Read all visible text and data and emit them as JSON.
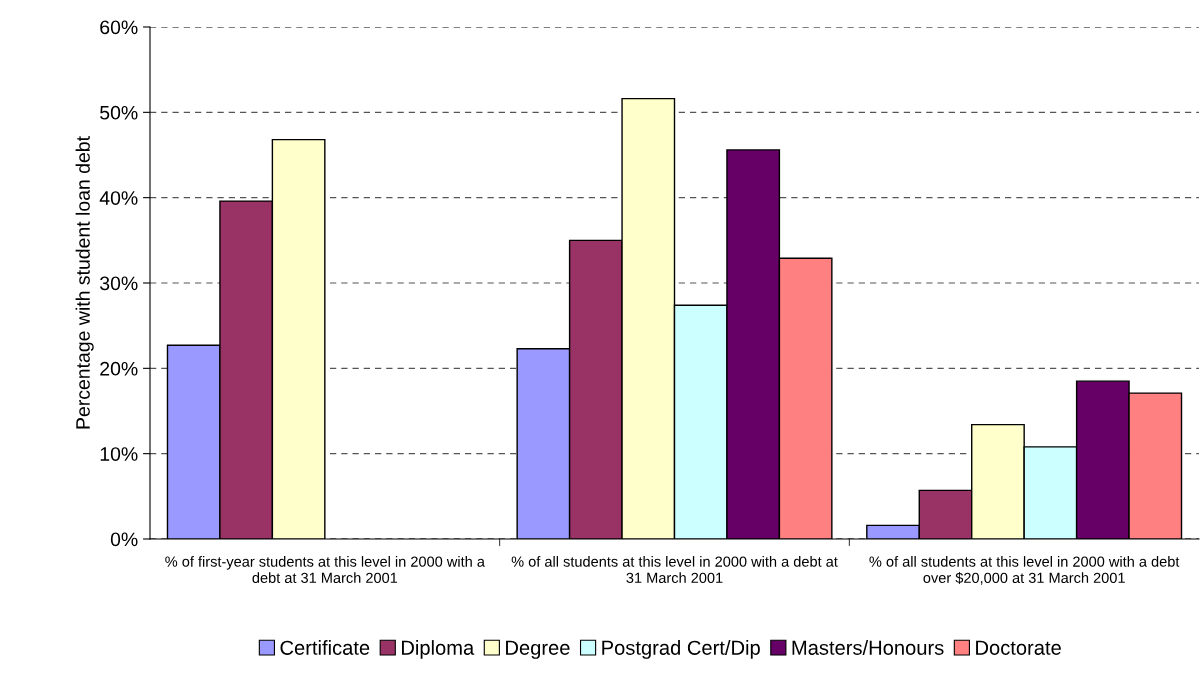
{
  "chart_data": {
    "type": "bar",
    "ylabel": "Percentage with student loan debt",
    "categories": [
      "% of first-year students at this level in 2000 with a debt at 31 March 2001",
      "% of all students at this level in 2000 with a debt at 31 March 2001",
      "% of all students at this level in 2000 with a debt over $20,000 at 31 March 2001"
    ],
    "series": [
      {
        "name": "Certificate",
        "color": "#9999ff",
        "values": [
          22.7,
          22.3,
          1.6
        ]
      },
      {
        "name": "Diploma",
        "color": "#993366",
        "values": [
          39.6,
          35.0,
          5.7
        ]
      },
      {
        "name": "Degree",
        "color": "#ffffcc",
        "values": [
          46.8,
          51.6,
          13.4
        ]
      },
      {
        "name": "Postgrad Cert/Dip",
        "color": "#ccffff",
        "values": [
          null,
          27.4,
          10.8
        ]
      },
      {
        "name": "Masters/Honours",
        "color": "#660066",
        "values": [
          null,
          45.6,
          18.5
        ]
      },
      {
        "name": "Doctorate",
        "color": "#ff8080",
        "values": [
          null,
          32.9,
          17.1
        ]
      }
    ],
    "ylim": [
      0,
      60
    ],
    "yticks": [
      {
        "value": 0,
        "label": "0%"
      },
      {
        "value": 10,
        "label": "10%"
      },
      {
        "value": 20,
        "label": "20%"
      },
      {
        "value": 30,
        "label": "30%"
      },
      {
        "value": 40,
        "label": "40%"
      },
      {
        "value": 50,
        "label": "50%"
      },
      {
        "value": 60,
        "label": "60%"
      }
    ],
    "grid": "y",
    "legend": "bottom"
  }
}
